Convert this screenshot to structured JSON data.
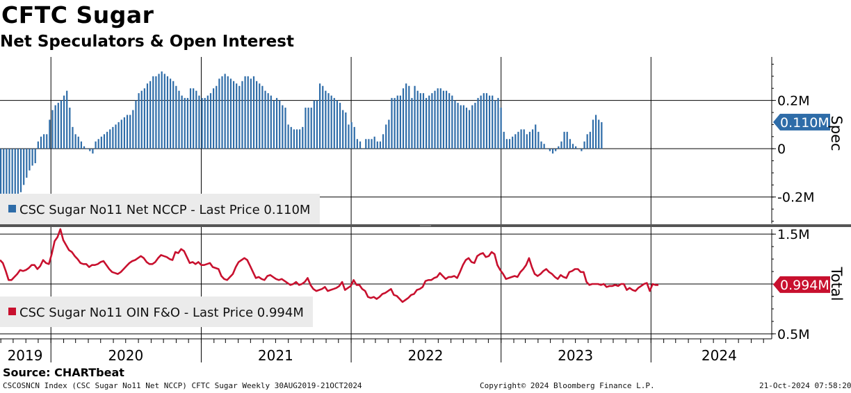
{
  "title": "CFTC Sugar",
  "subtitle": "Net Speculators & Open Interest",
  "source": "Source: CHARTbeat",
  "footer": {
    "left": "CSCOSNCN Index (CSC Sugar No11 Net NCCP) CFTC Sugar  Weekly 30AUG2019-21OCT2024",
    "center": "Copyright© 2024 Bloomberg Finance L.P.",
    "right": "21-Oct-2024 07:58:20"
  },
  "colors": {
    "spec": "#2e6ca8",
    "total": "#c8102e",
    "grid": "#000000",
    "divider": "#555555"
  },
  "chart_data": [
    {
      "type": "bar",
      "panel": "top",
      "axis_title": "Spec",
      "legend": "CSC Sugar No11 Net NCCP - Last Price 0.110M",
      "last_label": "0.110M",
      "last_value": 0.11,
      "ylim": [
        -0.31,
        0.38
      ],
      "yticks": [
        -0.2,
        0,
        0.2
      ],
      "ytick_labels": [
        "-0.2M",
        "0",
        "0.2M"
      ],
      "x_start": "2019-08-30",
      "x_end": "2024-10-15",
      "x_step_days": 7,
      "series": [
        {
          "values": [
            -0.19,
            -0.2,
            -0.2,
            -0.19,
            -0.21,
            -0.2,
            -0.2,
            -0.18,
            -0.15,
            -0.12,
            -0.09,
            -0.07,
            -0.06,
            0.03,
            0.05,
            0.06,
            0.06,
            0.12,
            0.16,
            0.18,
            0.19,
            0.2,
            0.22,
            0.24,
            0.17,
            0.09,
            0.06,
            0.05,
            0.03,
            0.01,
            0.0,
            -0.01,
            -0.02,
            0.03,
            0.04,
            0.05,
            0.06,
            0.07,
            0.08,
            0.09,
            0.1,
            0.11,
            0.12,
            0.13,
            0.14,
            0.14,
            0.16,
            0.2,
            0.23,
            0.24,
            0.25,
            0.27,
            0.28,
            0.3,
            0.3,
            0.31,
            0.32,
            0.31,
            0.3,
            0.29,
            0.28,
            0.26,
            0.24,
            0.22,
            0.21,
            0.21,
            0.25,
            0.25,
            0.24,
            0.22,
            0.21,
            0.21,
            0.22,
            0.23,
            0.25,
            0.26,
            0.29,
            0.3,
            0.31,
            0.3,
            0.29,
            0.28,
            0.27,
            0.26,
            0.28,
            0.3,
            0.3,
            0.29,
            0.3,
            0.28,
            0.27,
            0.26,
            0.24,
            0.23,
            0.22,
            0.2,
            0.21,
            0.2,
            0.18,
            0.17,
            0.1,
            0.09,
            0.08,
            0.08,
            0.08,
            0.09,
            0.17,
            0.17,
            0.17,
            0.2,
            0.2,
            0.27,
            0.26,
            0.24,
            0.23,
            0.22,
            0.21,
            0.2,
            0.19,
            0.16,
            0.15,
            0.1,
            0.11,
            0.09,
            0.04,
            0.03,
            0.0,
            0.04,
            0.04,
            0.04,
            0.05,
            0.03,
            0.03,
            0.06,
            0.1,
            0.12,
            0.21,
            0.21,
            0.22,
            0.22,
            0.25,
            0.27,
            0.26,
            0.21,
            0.26,
            0.24,
            0.23,
            0.23,
            0.21,
            0.22,
            0.23,
            0.24,
            0.25,
            0.25,
            0.24,
            0.24,
            0.23,
            0.22,
            0.2,
            0.19,
            0.18,
            0.18,
            0.17,
            0.16,
            0.18,
            0.19,
            0.21,
            0.22,
            0.23,
            0.23,
            0.22,
            0.22,
            0.2,
            0.21,
            0.17,
            0.07,
            0.04,
            0.04,
            0.05,
            0.06,
            0.07,
            0.08,
            0.08,
            0.06,
            0.07,
            0.08,
            0.1,
            0.07,
            0.03,
            0.02,
            0.0,
            -0.01,
            -0.02,
            -0.01,
            0.01,
            0.03,
            0.07,
            0.07,
            0.04,
            0.02,
            0.01,
            0.0,
            -0.01,
            0.03,
            0.06,
            0.07,
            0.12,
            0.14,
            0.12,
            0.11
          ]
        }
      ]
    },
    {
      "type": "line",
      "panel": "bottom",
      "axis_title": "Total",
      "legend": "CSC Sugar No11 OIN F&O - Last Price 0.994M",
      "last_label": "0.994M",
      "last_value": 0.994,
      "ylim": [
        0.45,
        1.55
      ],
      "yticks": [
        0.5,
        1.0,
        1.5
      ],
      "ytick_labels": [
        "0.5M",
        "",
        "1.5M"
      ],
      "x_start": "2019-08-30",
      "x_end": "2024-10-15",
      "x_step_days": 7,
      "series": [
        {
          "values": [
            1.24,
            1.21,
            1.13,
            1.04,
            1.04,
            1.07,
            1.1,
            1.14,
            1.13,
            1.14,
            1.16,
            1.19,
            1.19,
            1.15,
            1.18,
            1.24,
            1.21,
            1.2,
            1.3,
            1.43,
            1.47,
            1.55,
            1.44,
            1.39,
            1.34,
            1.32,
            1.28,
            1.25,
            1.21,
            1.2,
            1.2,
            1.17,
            1.19,
            1.19,
            1.2,
            1.22,
            1.23,
            1.19,
            1.15,
            1.12,
            1.11,
            1.1,
            1.12,
            1.15,
            1.18,
            1.21,
            1.23,
            1.24,
            1.26,
            1.28,
            1.26,
            1.22,
            1.2,
            1.2,
            1.22,
            1.26,
            1.29,
            1.28,
            1.27,
            1.25,
            1.24,
            1.32,
            1.31,
            1.35,
            1.33,
            1.27,
            1.21,
            1.22,
            1.2,
            1.22,
            1.19,
            1.19,
            1.2,
            1.21,
            1.17,
            1.16,
            1.15,
            1.08,
            1.05,
            1.04,
            1.07,
            1.1,
            1.17,
            1.22,
            1.24,
            1.26,
            1.24,
            1.18,
            1.12,
            1.06,
            1.07,
            1.05,
            1.04,
            1.08,
            1.09,
            1.07,
            1.05,
            1.04,
            1.05,
            1.03,
            1.01,
            0.99,
            1.0,
            1.02,
            0.99,
            1.0,
            1.02,
            1.06,
            0.99,
            0.95,
            0.93,
            0.94,
            0.95,
            0.97,
            0.93,
            0.94,
            0.95,
            0.96,
            0.98,
            1.02,
            0.94,
            0.96,
            0.98,
            1.04,
            0.99,
            0.99,
            0.95,
            0.93,
            0.87,
            0.86,
            0.87,
            0.85,
            0.87,
            0.9,
            0.91,
            0.93,
            0.95,
            0.89,
            0.88,
            0.85,
            0.82,
            0.84,
            0.86,
            0.89,
            0.9,
            0.94,
            0.95,
            0.97,
            1.03,
            1.04,
            1.04,
            1.06,
            1.07,
            1.11,
            1.08,
            1.05,
            1.07,
            1.07,
            1.08,
            1.06,
            1.12,
            1.19,
            1.24,
            1.26,
            1.22,
            1.21,
            1.28,
            1.3,
            1.31,
            1.27,
            1.28,
            1.32,
            1.3,
            1.19,
            1.14,
            1.1,
            1.05,
            1.06,
            1.07,
            1.08,
            1.07,
            1.12,
            1.15,
            1.19,
            1.26,
            1.17,
            1.1,
            1.08,
            1.1,
            1.13,
            1.15,
            1.12,
            1.1,
            1.07,
            1.05,
            1.09,
            1.07,
            1.06,
            1.12,
            1.13,
            1.15,
            1.15,
            1.12,
            1.12,
            1.02,
            0.99,
            1.0,
            1.0,
            1.0,
            0.99,
            1.0,
            0.97,
            0.98,
            0.98,
            0.99,
            0.98,
            1.0,
            1.0,
            0.94,
            0.96,
            0.94,
            0.93,
            0.96,
            0.98,
            1.0,
            1.01,
            0.93,
            1.0,
            0.99,
            0.99
          ]
        }
      ]
    }
  ],
  "x_axis": {
    "year_labels": [
      {
        "label": "2019",
        "date": "2019-10-30"
      },
      {
        "label": "2020",
        "date": "2020-07-01"
      },
      {
        "label": "2021",
        "date": "2021-07-01"
      },
      {
        "label": "2022",
        "date": "2022-07-01"
      },
      {
        "label": "2023",
        "date": "2023-07-01"
      },
      {
        "label": "2024",
        "date": "2024-06-15"
      }
    ],
    "year_boundaries": [
      "2020-01-01",
      "2021-01-01",
      "2022-01-01",
      "2023-01-01",
      "2024-01-01"
    ],
    "start": "2019-08-30",
    "end": "2024-10-21"
  }
}
